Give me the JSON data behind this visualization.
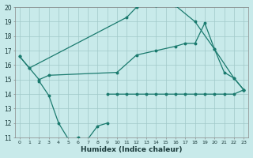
{
  "xlabel": "Humidex (Indice chaleur)",
  "color": "#1a7a6e",
  "bg_color": "#c8eaea",
  "grid_color": "#a0c8c8",
  "ylim": [
    11,
    20
  ],
  "xlim": [
    -0.5,
    23.5
  ],
  "top_x": [
    0,
    1,
    11,
    12,
    13,
    14,
    15,
    16,
    18,
    20,
    22,
    23
  ],
  "top_y": [
    16.6,
    15.8,
    19.3,
    20.0,
    20.4,
    20.1,
    20.4,
    20.1,
    19.0,
    17.1,
    15.1,
    14.3
  ],
  "mid_x": [
    0,
    1,
    2,
    3,
    10,
    12,
    14,
    16,
    17,
    18,
    19,
    20,
    21,
    22,
    23
  ],
  "mid_y": [
    16.6,
    15.8,
    15.0,
    15.3,
    15.5,
    16.7,
    17.0,
    17.3,
    17.5,
    17.5,
    18.9,
    17.1,
    15.5,
    15.1,
    14.3
  ],
  "low_x": [
    2,
    3,
    4,
    5,
    6,
    7,
    8,
    9
  ],
  "low_y": [
    14.9,
    13.9,
    12.0,
    10.9,
    11.0,
    10.9,
    11.8,
    12.0
  ],
  "flat_x": [
    9,
    10,
    11,
    12,
    13,
    14,
    15,
    16,
    17,
    18,
    19,
    20,
    21,
    22,
    23
  ],
  "flat_y": [
    14.0,
    14.0,
    14.0,
    14.0,
    14.0,
    14.0,
    14.0,
    14.0,
    14.0,
    14.0,
    14.0,
    14.0,
    14.0,
    14.0,
    14.3
  ]
}
